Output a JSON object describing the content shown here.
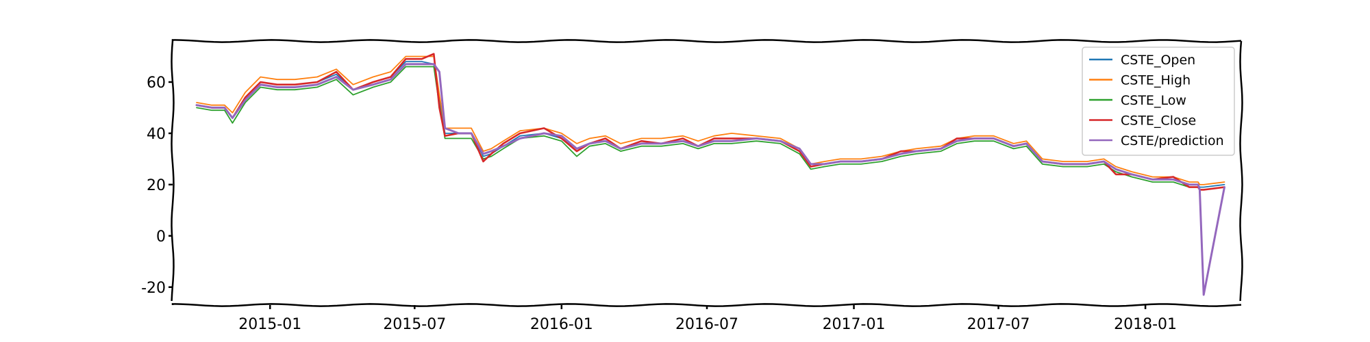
{
  "chart_data": {
    "type": "line",
    "title": "",
    "xlabel": "",
    "ylabel": "",
    "ylim": [
      -27,
      76
    ],
    "xlim": [
      "2014-09-01",
      "2018-05-01"
    ],
    "grid": false,
    "legend_position": "top-right",
    "xticks": [
      "2015-01",
      "2015-07",
      "2016-01",
      "2016-07",
      "2017-01",
      "2017-07",
      "2018-01"
    ],
    "yticks": [
      60,
      40,
      20,
      0,
      -20
    ],
    "x": [
      "2014-10-01",
      "2014-10-20",
      "2014-11-05",
      "2014-11-15",
      "2014-12-01",
      "2014-12-20",
      "2015-01-10",
      "2015-02-01",
      "2015-03-01",
      "2015-03-25",
      "2015-04-15",
      "2015-05-10",
      "2015-06-01",
      "2015-06-20",
      "2015-07-10",
      "2015-07-25",
      "2015-08-01",
      "2015-08-08",
      "2015-08-25",
      "2015-09-10",
      "2015-09-25",
      "2015-10-05",
      "2015-10-20",
      "2015-11-10",
      "2015-12-10",
      "2016-01-01",
      "2016-01-20",
      "2016-02-05",
      "2016-02-25",
      "2016-03-15",
      "2016-04-10",
      "2016-05-05",
      "2016-06-01",
      "2016-06-20",
      "2016-07-10",
      "2016-08-01",
      "2016-09-01",
      "2016-10-01",
      "2016-10-25",
      "2016-11-08",
      "2016-11-25",
      "2016-12-15",
      "2017-01-10",
      "2017-02-05",
      "2017-03-01",
      "2017-03-20",
      "2017-04-20",
      "2017-05-10",
      "2017-06-01",
      "2017-06-25",
      "2017-07-20",
      "2017-08-05",
      "2017-08-25",
      "2017-09-20",
      "2017-10-20",
      "2017-11-10",
      "2017-11-25",
      "2017-12-15",
      "2018-01-10",
      "2018-02-05",
      "2018-02-25",
      "2018-03-08",
      "2018-03-10",
      "2018-03-15",
      "2018-04-10"
    ],
    "series": [
      {
        "name": "CSTE_Open",
        "color": "#1f77b4",
        "values": [
          51,
          50,
          50,
          46,
          54,
          60,
          59,
          59,
          60,
          63,
          57,
          60,
          62,
          68,
          68,
          67,
          53,
          40,
          40,
          40,
          31,
          32,
          35,
          39,
          40,
          38,
          34,
          36,
          37,
          34,
          36,
          36,
          37,
          35,
          37,
          37,
          38,
          37,
          33,
          27,
          28,
          29,
          29,
          30,
          32,
          33,
          34,
          37,
          38,
          38,
          35,
          36,
          29,
          28,
          28,
          29,
          26,
          24,
          22,
          22,
          20,
          20,
          19,
          19,
          20
        ]
      },
      {
        "name": "CSTE_High",
        "color": "#ff7f0e",
        "values": [
          52,
          51,
          51,
          48,
          56,
          62,
          61,
          61,
          62,
          65,
          59,
          62,
          64,
          70,
          70,
          70,
          55,
          42,
          42,
          42,
          33,
          34,
          37,
          41,
          42,
          40,
          36,
          38,
          39,
          36,
          38,
          38,
          39,
          37,
          39,
          40,
          39,
          38,
          34,
          28,
          29,
          30,
          30,
          31,
          33,
          34,
          35,
          38,
          39,
          39,
          36,
          37,
          30,
          29,
          29,
          30,
          27,
          25,
          23,
          23,
          21,
          21,
          20,
          20,
          21
        ]
      },
      {
        "name": "CSTE_Low",
        "color": "#2ca02c",
        "values": [
          50,
          49,
          49,
          44,
          52,
          58,
          57,
          57,
          58,
          61,
          55,
          58,
          60,
          66,
          66,
          66,
          51,
          38,
          38,
          38,
          30,
          31,
          34,
          38,
          39,
          37,
          31,
          35,
          36,
          33,
          35,
          35,
          36,
          34,
          36,
          36,
          37,
          36,
          32,
          26,
          27,
          28,
          28,
          29,
          31,
          32,
          33,
          36,
          37,
          37,
          34,
          35,
          28,
          27,
          27,
          28,
          25,
          23,
          21,
          21,
          19,
          19,
          18,
          18,
          19
        ]
      },
      {
        "name": "CSTE_Close",
        "color": "#d62728",
        "values": [
          51,
          50,
          50,
          46,
          54,
          60,
          59,
          59,
          60,
          64,
          57,
          60,
          62,
          69,
          69,
          71,
          50,
          39,
          40,
          40,
          29,
          32,
          36,
          40,
          42,
          38,
          33,
          36,
          38,
          34,
          37,
          36,
          38,
          35,
          38,
          38,
          38,
          37,
          33,
          27,
          28,
          29,
          29,
          30,
          33,
          33,
          34,
          38,
          38,
          38,
          35,
          36,
          29,
          28,
          28,
          29,
          24,
          24,
          22,
          23,
          19,
          19,
          18,
          18,
          19
        ]
      },
      {
        "name": "CSTE/prediction",
        "color": "#9467bd",
        "values": [
          51,
          50,
          50,
          46,
          53,
          59,
          58,
          58,
          59,
          62,
          57,
          59,
          61,
          67,
          67,
          67,
          64,
          42,
          40,
          40,
          32,
          33,
          35,
          38,
          40,
          39,
          34,
          36,
          37,
          34,
          36,
          36,
          37,
          35,
          37,
          37,
          38,
          37,
          34,
          28,
          28,
          29,
          29,
          30,
          32,
          33,
          34,
          37,
          38,
          38,
          35,
          36,
          29,
          28,
          28,
          29,
          26,
          24,
          22,
          22,
          20,
          20,
          18,
          -23,
          19
        ]
      }
    ]
  }
}
